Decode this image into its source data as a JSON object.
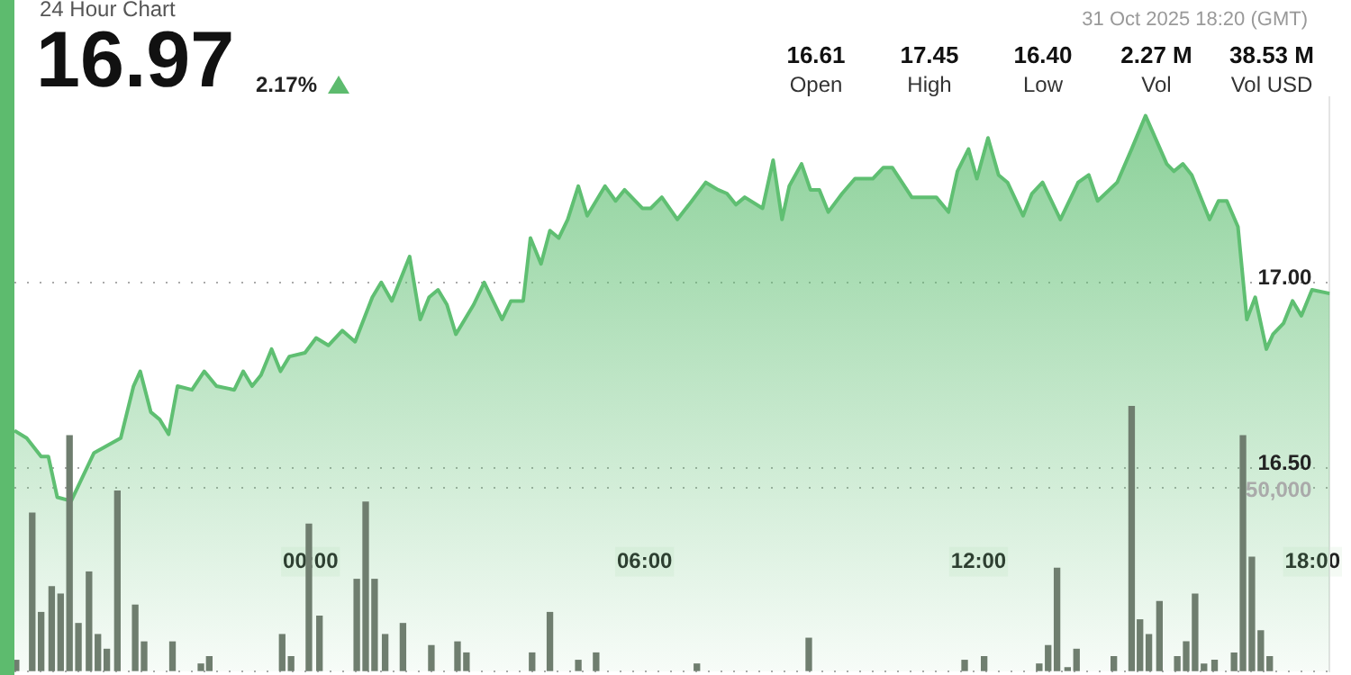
{
  "chart_data": {
    "type": "area",
    "title": "24 Hour Chart",
    "annotations": [
      "16.97",
      "2.17%",
      "31 Oct 2025 18:20 (GMT)",
      "16.61",
      "Open",
      "17.45",
      "High",
      "16.40",
      "Low",
      "2.27 M",
      "Vol",
      "38.53 M",
      "Vol USD"
    ],
    "xlim": [
      -5.32,
      18.31
    ],
    "xticks": [
      {
        "value": 0,
        "label": "00:00"
      },
      {
        "value": 6,
        "label": "06:00"
      },
      {
        "value": 12,
        "label": "12:00"
      },
      {
        "value": 18,
        "label": "18:00"
      }
    ],
    "ylim": [
      15.95,
      17.5
    ],
    "yticks": [
      {
        "value": 16.5,
        "label": "16.50"
      },
      {
        "value": 17,
        "label": "17.00"
      }
    ],
    "y2lim": [
      0,
      156000
    ],
    "y2ticks": [
      {
        "value": 0,
        "label": null
      },
      {
        "value": 50000,
        "label": "50,000"
      }
    ],
    "grid": "y",
    "marker": "none",
    "series": [
      {
        "color": "#5fbf72",
        "x": [
          -5.32,
          -5.1,
          -4.84,
          -4.71,
          -4.55,
          -4.3,
          -3.89,
          -3.41,
          -3.18,
          -3.06,
          -2.87,
          -2.71,
          -2.55,
          -2.39,
          -2.13,
          -1.91,
          -1.69,
          -1.37,
          -1.21,
          -1.05,
          -0.89,
          -0.7,
          -0.54,
          -0.38,
          -0.1,
          0.1,
          0.32,
          0.57,
          0.8,
          1.11,
          1.27,
          1.46,
          1.78,
          1.97,
          2.13,
          2.29,
          2.45,
          2.61,
          2.93,
          3.12,
          3.44,
          3.6,
          3.82,
          3.95,
          4.14,
          4.3,
          4.46,
          4.62,
          4.81,
          4.97,
          5.29,
          5.48,
          5.64,
          5.96,
          6.11,
          6.31,
          6.59,
          6.85,
          7.1,
          7.32,
          7.48,
          7.64,
          7.8,
          8.12,
          8.31,
          8.47,
          8.6,
          8.82,
          8.98,
          9.14,
          9.3,
          9.55,
          9.78,
          10.1,
          10.29,
          10.45,
          10.8,
          11.24,
          11.46,
          11.62,
          11.82,
          11.97,
          12.17,
          12.36,
          12.52,
          12.8,
          12.96,
          13.15,
          13.47,
          13.79,
          13.98,
          14.14,
          14.49,
          14.75,
          15.0,
          15.38,
          15.51,
          15.67,
          15.83,
          16.15,
          16.31,
          16.46,
          16.66,
          16.82,
          16.97,
          17.17,
          17.29,
          17.48,
          17.64,
          17.8,
          17.99,
          18.31
        ],
        "values": [
          16.6,
          16.58,
          16.53,
          16.53,
          16.42,
          16.41,
          16.54,
          16.58,
          16.72,
          16.76,
          16.65,
          16.63,
          16.59,
          16.72,
          16.71,
          16.76,
          16.72,
          16.71,
          16.76,
          16.72,
          16.75,
          16.82,
          16.76,
          16.8,
          16.81,
          16.85,
          16.83,
          16.87,
          16.84,
          16.96,
          17.0,
          16.95,
          17.07,
          16.9,
          16.96,
          16.98,
          16.94,
          16.86,
          16.94,
          17.0,
          16.9,
          16.95,
          16.95,
          17.12,
          17.05,
          17.14,
          17.12,
          17.17,
          17.26,
          17.18,
          17.26,
          17.22,
          17.25,
          17.2,
          17.2,
          17.23,
          17.17,
          17.22,
          17.27,
          17.25,
          17.24,
          17.21,
          17.23,
          17.2,
          17.33,
          17.17,
          17.26,
          17.32,
          17.25,
          17.25,
          17.19,
          17.24,
          17.28,
          17.28,
          17.31,
          17.31,
          17.23,
          17.23,
          17.19,
          17.3,
          17.36,
          17.28,
          17.39,
          17.29,
          17.27,
          17.18,
          17.24,
          17.27,
          17.17,
          17.27,
          17.29,
          17.22,
          17.27,
          17.36,
          17.45,
          17.32,
          17.3,
          17.32,
          17.29,
          17.17,
          17.22,
          17.22,
          17.15,
          16.9,
          16.96,
          16.82,
          16.86,
          16.89,
          16.95,
          16.91,
          16.98,
          16.97
        ]
      },
      {
        "type": "bar",
        "axis": "y2",
        "color": "#6f7e6f",
        "x": [
          -5.29,
          -5.0,
          -4.84,
          -4.65,
          -4.49,
          -4.33,
          -4.17,
          -3.98,
          -3.82,
          -3.66,
          -3.47,
          -3.15,
          -2.99,
          -2.48,
          -1.97,
          -1.82,
          -0.51,
          -0.35,
          -0.03,
          0.16,
          0.83,
          0.99,
          1.15,
          1.34,
          1.66,
          2.17,
          2.64,
          2.8,
          3.98,
          4.3,
          4.81,
          5.13,
          6.94,
          8.95,
          11.75,
          12.1,
          13.09,
          13.25,
          13.41,
          13.6,
          13.76,
          14.43,
          14.75,
          14.9,
          15.06,
          15.25,
          15.57,
          15.73,
          15.89,
          16.05,
          16.24,
          16.59,
          16.75,
          16.91,
          17.07,
          17.23
        ],
        "values": [
          3000,
          43000,
          16000,
          23000,
          21000,
          64000,
          13000,
          27000,
          10000,
          6000,
          49000,
          18000,
          8000,
          8000,
          2000,
          4000,
          10000,
          4000,
          40000,
          15000,
          25000,
          46000,
          25000,
          10000,
          13000,
          7000,
          8000,
          5000,
          5000,
          16000,
          3000,
          5000,
          2000,
          9000,
          3000,
          4000,
          2000,
          7000,
          28000,
          1000,
          6000,
          4000,
          72000,
          14000,
          10000,
          19000,
          4000,
          8000,
          21000,
          2000,
          3000,
          5000,
          64000,
          31000,
          11000,
          4000
        ]
      }
    ]
  }
}
